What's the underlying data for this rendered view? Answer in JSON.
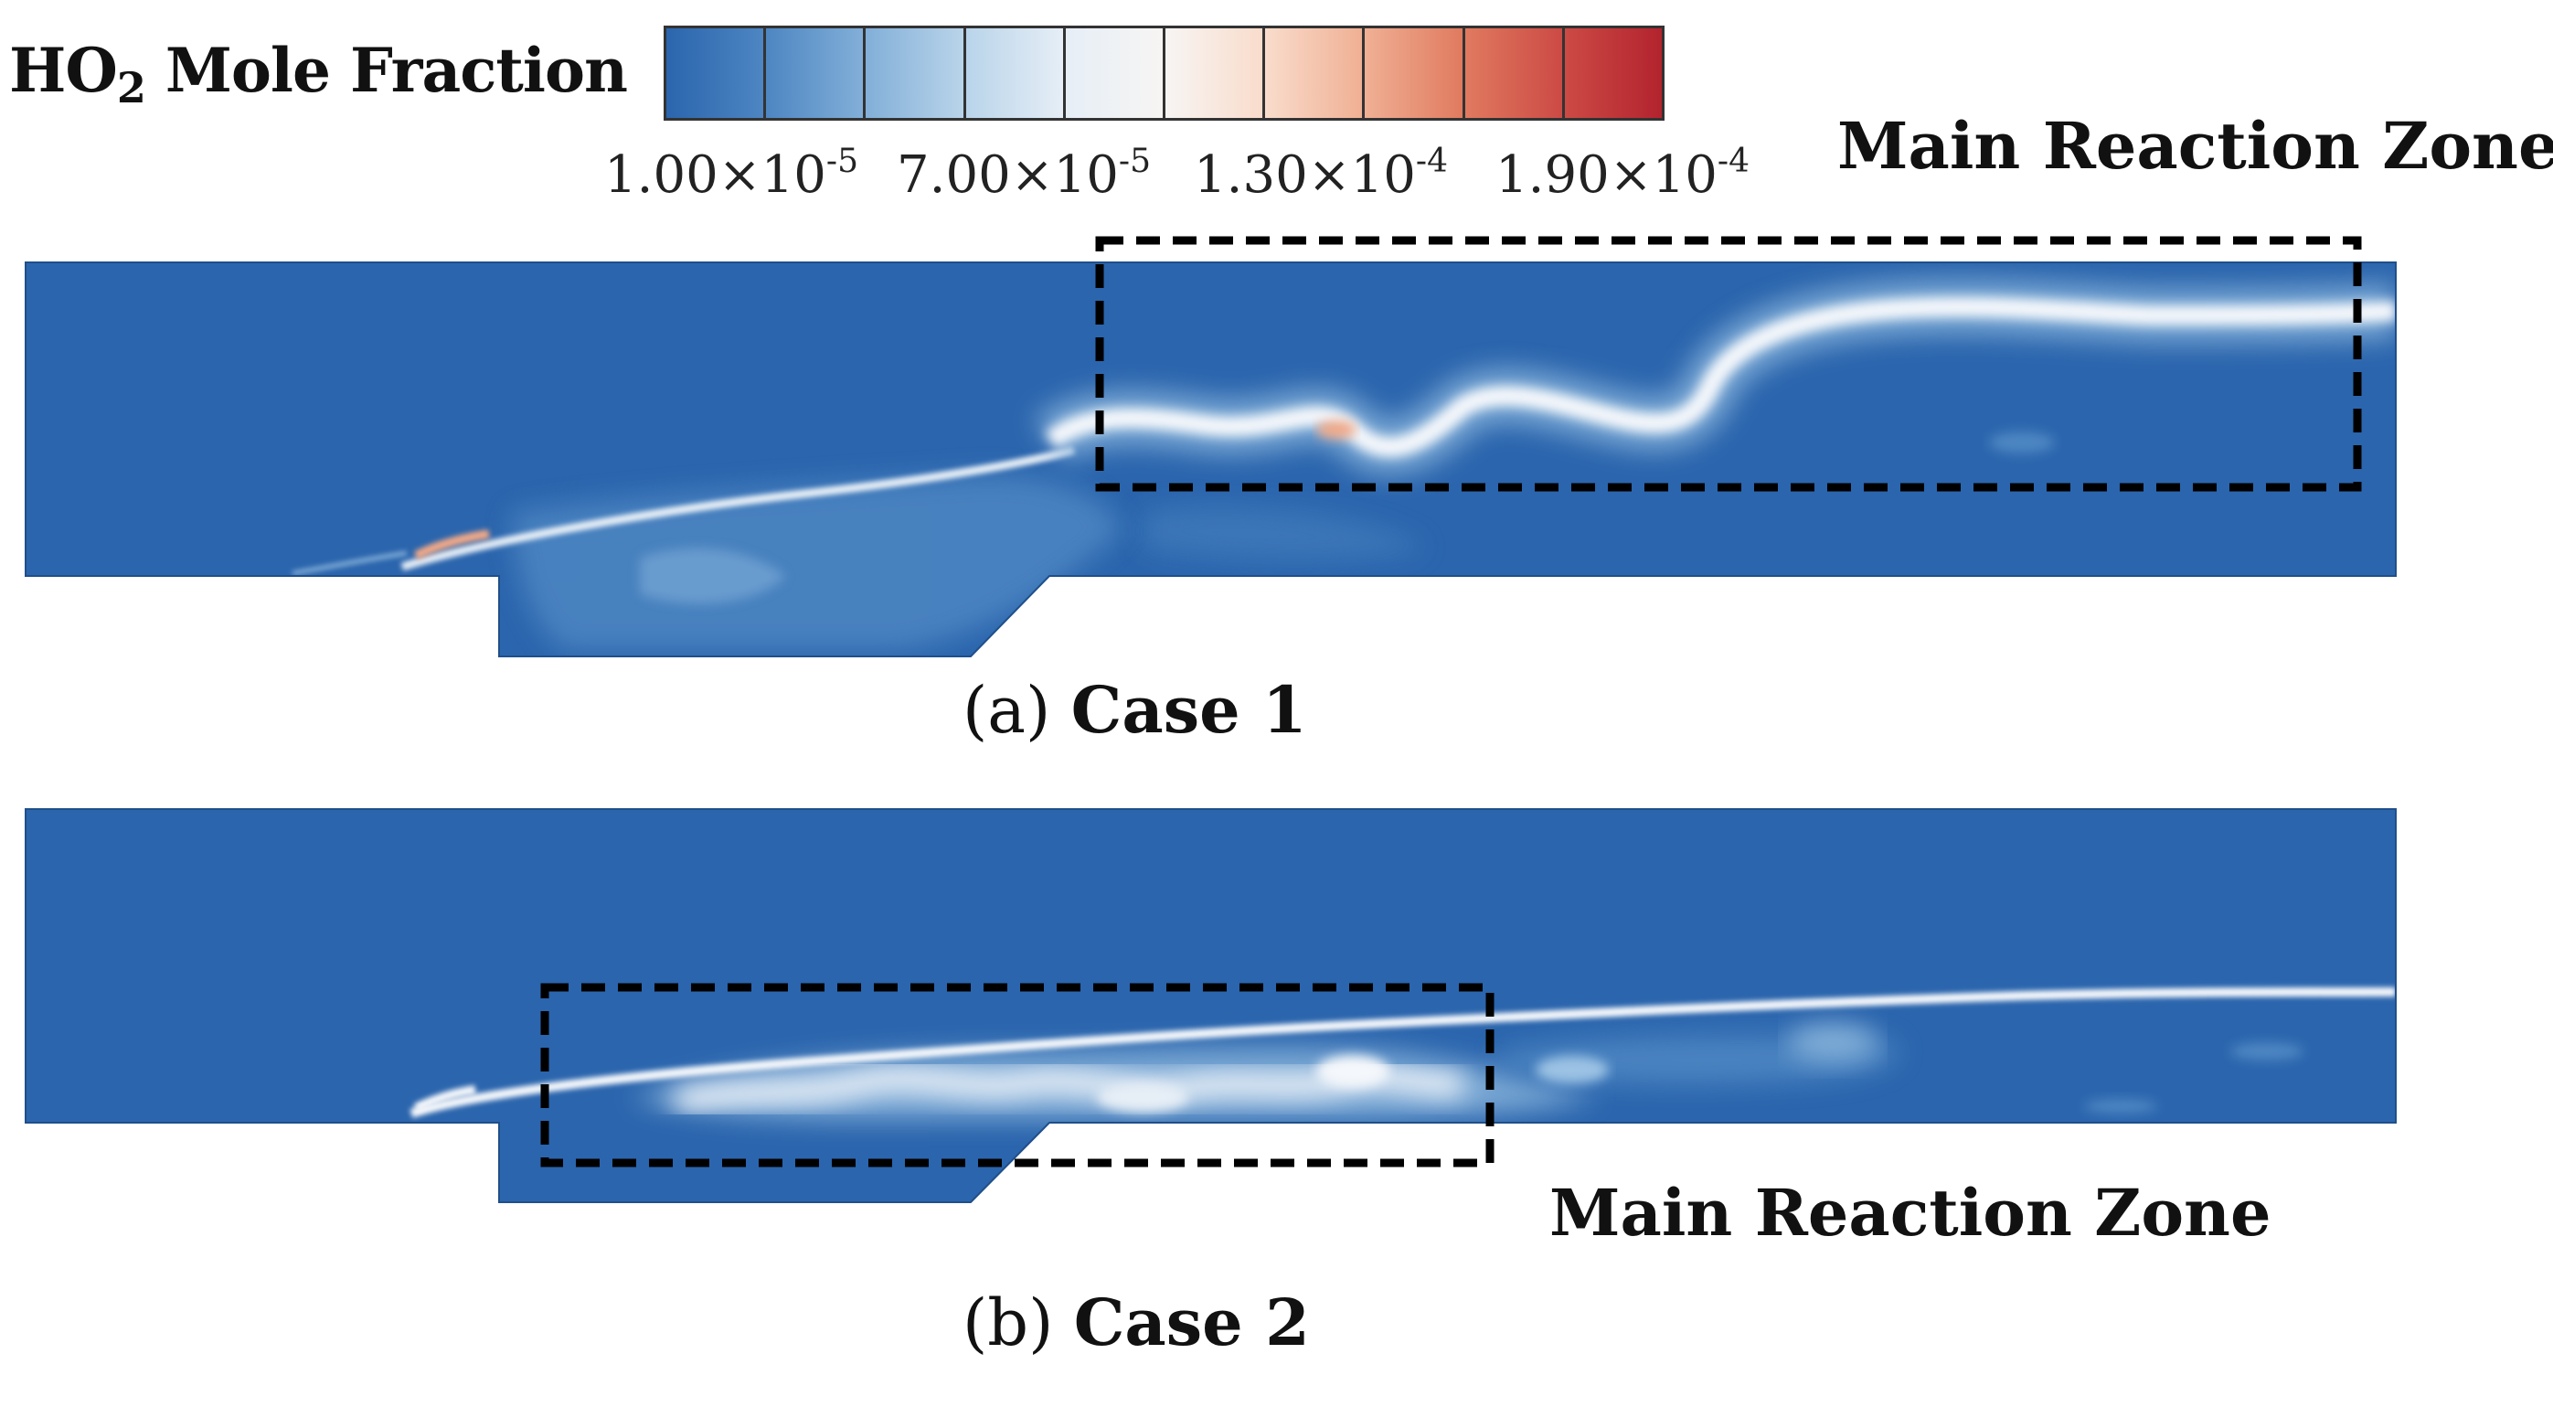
{
  "legend": {
    "title_main": "HO",
    "title_sub": "2",
    "title_rest": " Mole Fraction",
    "colors": [
      "#2b65ad",
      "#4d86c2",
      "#82afd8",
      "#b9d4ea",
      "#e6eef6",
      "#f7f5f3",
      "#f9dccc",
      "#f0b094",
      "#e07a5f",
      "#cc4a45",
      "#b3232e"
    ],
    "ticks": [
      {
        "mantissa": "1.00×10",
        "exponent": "-5"
      },
      {
        "mantissa": "7.00×10",
        "exponent": "-5"
      },
      {
        "mantissa": "1.30×10",
        "exponent": "-4"
      },
      {
        "mantissa": "1.90×10",
        "exponent": "-4"
      }
    ]
  },
  "panels": [
    {
      "caption_letter": "(a)",
      "caption_case": "Case 1",
      "zone_label": "Main Reaction Zone"
    },
    {
      "caption_letter": "(b)",
      "caption_case": "Case 2",
      "zone_label": "Main Reaction Zone"
    }
  ],
  "field_colors": {
    "background": "#2b65ad",
    "mid": "#4d86c2",
    "light": "#9cc3e4",
    "white": "#f4f7fb",
    "hot": "#f0a887",
    "box_stroke": "#000000"
  }
}
